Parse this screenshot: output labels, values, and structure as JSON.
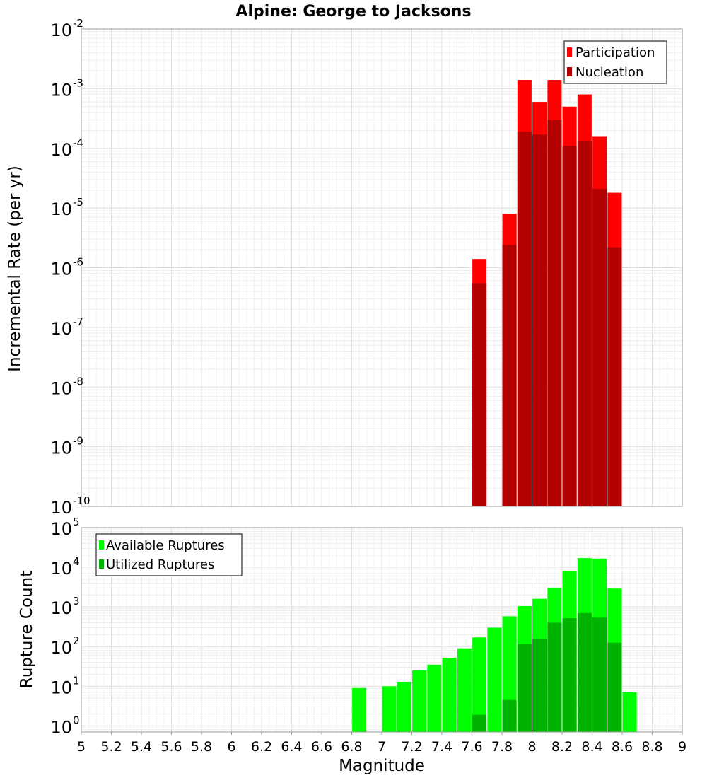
{
  "chart_data": [
    {
      "type": "bar",
      "title": "Alpine: George to Jacksons",
      "xlabel": "",
      "ylabel": "Incremental Rate (per yr)",
      "yscale": "log",
      "ylim": [
        1e-10,
        0.01
      ],
      "xlim": [
        5,
        9
      ],
      "y_ticks": [
        {
          "base": "10",
          "exp": "-10",
          "value": 1e-10
        },
        {
          "base": "10",
          "exp": "-9",
          "value": 1e-09
        },
        {
          "base": "10",
          "exp": "-8",
          "value": 1e-08
        },
        {
          "base": "10",
          "exp": "-7",
          "value": 1e-07
        },
        {
          "base": "10",
          "exp": "-6",
          "value": 1e-06
        },
        {
          "base": "10",
          "exp": "-5",
          "value": 1e-05
        },
        {
          "base": "10",
          "exp": "-4",
          "value": 0.0001
        },
        {
          "base": "10",
          "exp": "-3",
          "value": 0.001
        },
        {
          "base": "10",
          "exp": "-2",
          "value": 0.01
        }
      ],
      "grid": true,
      "legend_position": "top-right",
      "x": [
        7.65,
        7.75,
        7.85,
        7.95,
        8.05,
        8.15,
        8.25,
        8.35,
        8.45,
        8.55
      ],
      "series": [
        {
          "name": "Participation",
          "color": "#ff0000",
          "values": [
            1.4e-06,
            null,
            8e-06,
            0.0014,
            0.0006,
            0.0014,
            0.0005,
            0.0008,
            0.00016,
            1.8e-05
          ]
        },
        {
          "name": "Nucleation",
          "color": "#b30000",
          "values": [
            5.5e-07,
            null,
            2.4e-06,
            0.00019,
            0.00017,
            0.0003,
            0.00011,
            0.00013,
            2.1e-05,
            2.2e-06
          ]
        }
      ]
    },
    {
      "type": "bar",
      "title": "",
      "xlabel": "Magnitude",
      "ylabel": "Rupture Count",
      "yscale": "log",
      "ylim": [
        0.7,
        100000
      ],
      "xlim": [
        5,
        9
      ],
      "y_ticks": [
        {
          "base": "10",
          "exp": "0",
          "value": 1
        },
        {
          "base": "10",
          "exp": "1",
          "value": 10
        },
        {
          "base": "10",
          "exp": "2",
          "value": 100
        },
        {
          "base": "10",
          "exp": "3",
          "value": 1000
        },
        {
          "base": "10",
          "exp": "4",
          "value": 10000
        },
        {
          "base": "10",
          "exp": "5",
          "value": 100000
        }
      ],
      "x_tick_labels": [
        "5",
        "5.2",
        "5.4",
        "5.6",
        "5.8",
        "6",
        "6.2",
        "6.4",
        "6.6",
        "6.8",
        "7",
        "7.2",
        "7.4",
        "7.6",
        "7.8",
        "8",
        "8.2",
        "8.4",
        "8.6",
        "8.8",
        "9"
      ],
      "grid": true,
      "legend_position": "top-left",
      "x": [
        6.85,
        6.95,
        7.05,
        7.15,
        7.25,
        7.35,
        7.45,
        7.55,
        7.65,
        7.75,
        7.85,
        7.95,
        8.05,
        8.15,
        8.25,
        8.35,
        8.45,
        8.55,
        8.65
      ],
      "series": [
        {
          "name": "Available Ruptures",
          "color": "#00ff00",
          "values": [
            9,
            null,
            10,
            13,
            25,
            35,
            52,
            90,
            170,
            300,
            580,
            1050,
            1600,
            3000,
            8000,
            17000,
            16500,
            2900,
            7
          ]
        },
        {
          "name": "Utilized Ruptures",
          "color": "#00b300",
          "values": [
            null,
            null,
            null,
            null,
            null,
            null,
            null,
            null,
            1.9,
            null,
            4.5,
            115,
            155,
            400,
            520,
            700,
            540,
            125,
            null
          ]
        }
      ]
    }
  ]
}
